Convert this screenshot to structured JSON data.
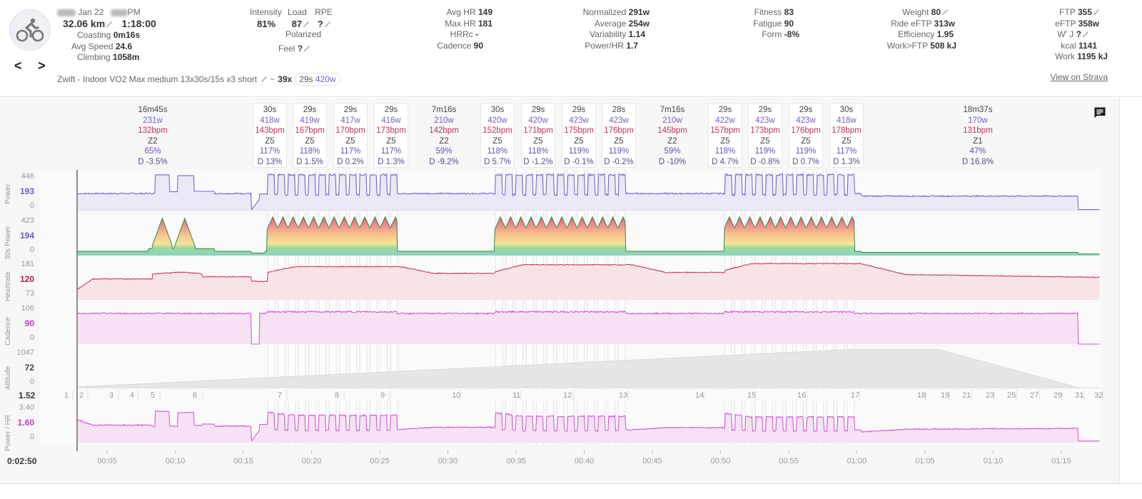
{
  "activity": {
    "date": "Jan 22",
    "time_suffix": "PM",
    "distance": "32.06 km",
    "duration": "1:18:00",
    "coasting": {
      "label": "Coasting",
      "value": "0m16s"
    },
    "avg_speed": {
      "label": "Avg Speed",
      "value": "24.6"
    },
    "climbing": {
      "label": "Climbing",
      "value": "1058m"
    },
    "name": "Zwift - Indoor VO2 Max medium 13x30s/15s x3 short",
    "summary_prefix": "~",
    "summary_count": "39x",
    "summary_duration": "29s",
    "summary_power": "420w",
    "icon": "bike-icon"
  },
  "nav": {
    "prev": "<",
    "next": ">"
  },
  "intensity": {
    "headers": [
      "Intensity",
      "Load",
      "RPE"
    ],
    "values": [
      "81%",
      "87",
      "?"
    ],
    "polarized": "Polarized",
    "feel_label": "Feel",
    "feel_value": "?"
  },
  "hr_stats": [
    {
      "label": "Avg HR",
      "value": "149"
    },
    {
      "label": "Max HR",
      "value": "181"
    },
    {
      "label": "HRRc",
      "value": "-"
    },
    {
      "label": "Cadence",
      "value": "90"
    }
  ],
  "power_stats": [
    {
      "label": "Normalized",
      "value": "291w"
    },
    {
      "label": "Average",
      "value": "254w"
    },
    {
      "label": "Variability",
      "value": "1.14"
    },
    {
      "label": "Power/HR",
      "value": "1.7"
    }
  ],
  "fitness_stats": [
    {
      "label": "Fitness",
      "value": "83"
    },
    {
      "label": "Fatigue",
      "value": "90"
    },
    {
      "label": "Form",
      "value": "-8%"
    }
  ],
  "weight_stats": [
    {
      "label": "Weight",
      "value": "80"
    },
    {
      "label": "Ride eFTP",
      "value": "313w"
    },
    {
      "label": "Efficiency",
      "value": "1.95"
    },
    {
      "label": "Work>FTP",
      "value": "508 kJ"
    }
  ],
  "ftp_stats": [
    {
      "label": "FTP",
      "value": "355"
    },
    {
      "label": "eFTP",
      "value": "358w"
    },
    {
      "label": "W' J",
      "value": "?"
    },
    {
      "label": "kcal",
      "value": "1141"
    },
    {
      "label": "Work",
      "value": "1195 kJ"
    }
  ],
  "strava_link": "View on Strava",
  "intervals": [
    {
      "t": "16m45s",
      "p": "231w",
      "h": "132bpm",
      "z": "Z2",
      "pc": "65%",
      "d": "D -3.5%"
    },
    {
      "t": "30s",
      "p": "418w",
      "h": "143bpm",
      "z": "Z5",
      "pc": "117%",
      "d": "D 13%"
    },
    {
      "t": "29s",
      "p": "419w",
      "h": "167bpm",
      "z": "Z5",
      "pc": "118%",
      "d": "D 1.5%"
    },
    {
      "t": "29s",
      "p": "417w",
      "h": "170bpm",
      "z": "Z5",
      "pc": "117%",
      "d": "D 0.2%"
    },
    {
      "t": "29s",
      "p": "416w",
      "h": "173bpm",
      "z": "Z5",
      "pc": "117%",
      "d": "D 1.3%"
    },
    {
      "t": "7m16s",
      "p": "210w",
      "h": "142bpm",
      "z": "Z2",
      "pc": "59%",
      "d": "D -9.2%"
    },
    {
      "t": "30s",
      "p": "420w",
      "h": "152bpm",
      "z": "Z5",
      "pc": "118%",
      "d": "D 5.7%"
    },
    {
      "t": "29s",
      "p": "420w",
      "h": "171bpm",
      "z": "Z5",
      "pc": "118%",
      "d": "D -1.2%"
    },
    {
      "t": "29s",
      "p": "423w",
      "h": "175bpm",
      "z": "Z5",
      "pc": "119%",
      "d": "D -0.1%"
    },
    {
      "t": "28s",
      "p": "423w",
      "h": "176bpm",
      "z": "Z5",
      "pc": "119%",
      "d": "D -0.2%"
    },
    {
      "t": "7m16s",
      "p": "210w",
      "h": "145bpm",
      "z": "Z2",
      "pc": "59%",
      "d": "D -10%"
    },
    {
      "t": "29s",
      "p": "422w",
      "h": "157bpm",
      "z": "Z5",
      "pc": "118%",
      "d": "D 4.7%"
    },
    {
      "t": "29s",
      "p": "423w",
      "h": "173bpm",
      "z": "Z5",
      "pc": "119%",
      "d": "D -0.8%"
    },
    {
      "t": "29s",
      "p": "423w",
      "h": "176bpm",
      "z": "Z5",
      "pc": "119%",
      "d": "D 0.7%"
    },
    {
      "t": "30s",
      "p": "418w",
      "h": "178bpm",
      "z": "Z5",
      "pc": "117%",
      "d": "D 1.3%"
    },
    {
      "t": "18m37s",
      "p": "170w",
      "h": "131bpm",
      "z": "Z1",
      "pc": "47%",
      "d": "D 16.8%"
    }
  ],
  "charts": {
    "power": {
      "label": "Power",
      "ticks": [
        "446",
        "193",
        "0"
      ],
      "color": "#7b68c8"
    },
    "power30": {
      "label": "30s Power",
      "ticks": [
        "423",
        "194",
        "0"
      ],
      "color": "#2f9a4a"
    },
    "heartrate": {
      "label": "Heartrate",
      "ticks": [
        "181",
        "120",
        "73"
      ],
      "color": "#c2305a"
    },
    "cadence": {
      "label": "Cadence",
      "ticks": [
        "106",
        "90",
        "0"
      ],
      "color": "#d24fd0"
    },
    "altitude": {
      "label": "Altitude",
      "ticks": [
        "1047",
        "72",
        "0"
      ],
      "color": "#cccccc"
    },
    "powerhr": {
      "label": "Power / HR",
      "ticks": [
        "3.40",
        "1.60",
        "0"
      ],
      "color": "#d24fd0"
    }
  },
  "laps": {
    "start_value": "1.52",
    "labels": [
      "1",
      "2",
      "3",
      "4",
      "5",
      "6",
      "7",
      "8",
      "9",
      "10",
      "11",
      "12",
      "13",
      "14",
      "15",
      "16",
      "17",
      "18",
      "19",
      "21",
      "23",
      "25",
      "27",
      "29",
      "31",
      "32"
    ]
  },
  "time_axis": {
    "start": "0:02:50",
    "ticks": [
      "00:05",
      "00:10",
      "00:15",
      "00:20",
      "00:25",
      "00:30",
      "00:35",
      "00:40",
      "00:45",
      "00:50",
      "00:55",
      "01:00",
      "01:05",
      "01:10",
      "01:15"
    ]
  }
}
